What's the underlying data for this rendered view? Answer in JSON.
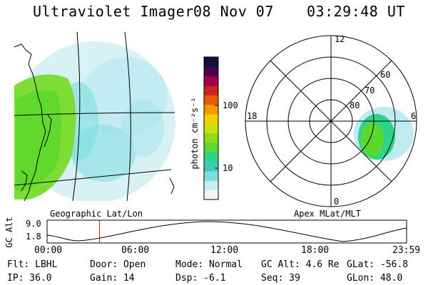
{
  "header": {
    "instrument": "Ultraviolet Imager",
    "date": "08 Nov 07",
    "time": "03:29:48 UT"
  },
  "left_panel_label": "Geographic Lat/Lon",
  "right_panel_label": "Apex MLat/MLT",
  "colorbar": {
    "unit_label": "photon cm⁻²s⁻¹",
    "ticks": [
      "100",
      "10"
    ]
  },
  "polar": {
    "mlt_labels": [
      "12",
      "18",
      "6",
      "0"
    ],
    "lat_labels": [
      "60",
      "70",
      "80"
    ]
  },
  "altitude_plot": {
    "ylabel": "GC Alt",
    "yticks": [
      "9.0",
      "1.8"
    ],
    "xticks": [
      "00:00",
      "06:00",
      "12:00",
      "18:00",
      "23:59"
    ],
    "current_time_fraction": 0.146
  },
  "info": {
    "filter": "Flt: LBHL",
    "door": "Door: Open",
    "mode": "Mode: Normal",
    "gc_alt": "GC Alt: 4.6 Re",
    "glat": "GLat: -56.8",
    "ip": "IP: 36.0",
    "gain": "Gain: 14",
    "dsp": "Dsp:   -6.1",
    "seq": "Seq: 39",
    "glon": "GLon:  48.0"
  },
  "colors": {
    "background": "#ffffff",
    "line": "#000000",
    "marker": "#e00000",
    "palette": [
      "#eef6f8",
      "#c8eef2",
      "#7ddde0",
      "#40c8b8",
      "#2fd38a",
      "#5bd82e",
      "#8fdc18",
      "#c8e010",
      "#f0d000",
      "#f59a00",
      "#e85a00",
      "#d02020",
      "#a0004a",
      "#4a004a",
      "#101040"
    ]
  }
}
